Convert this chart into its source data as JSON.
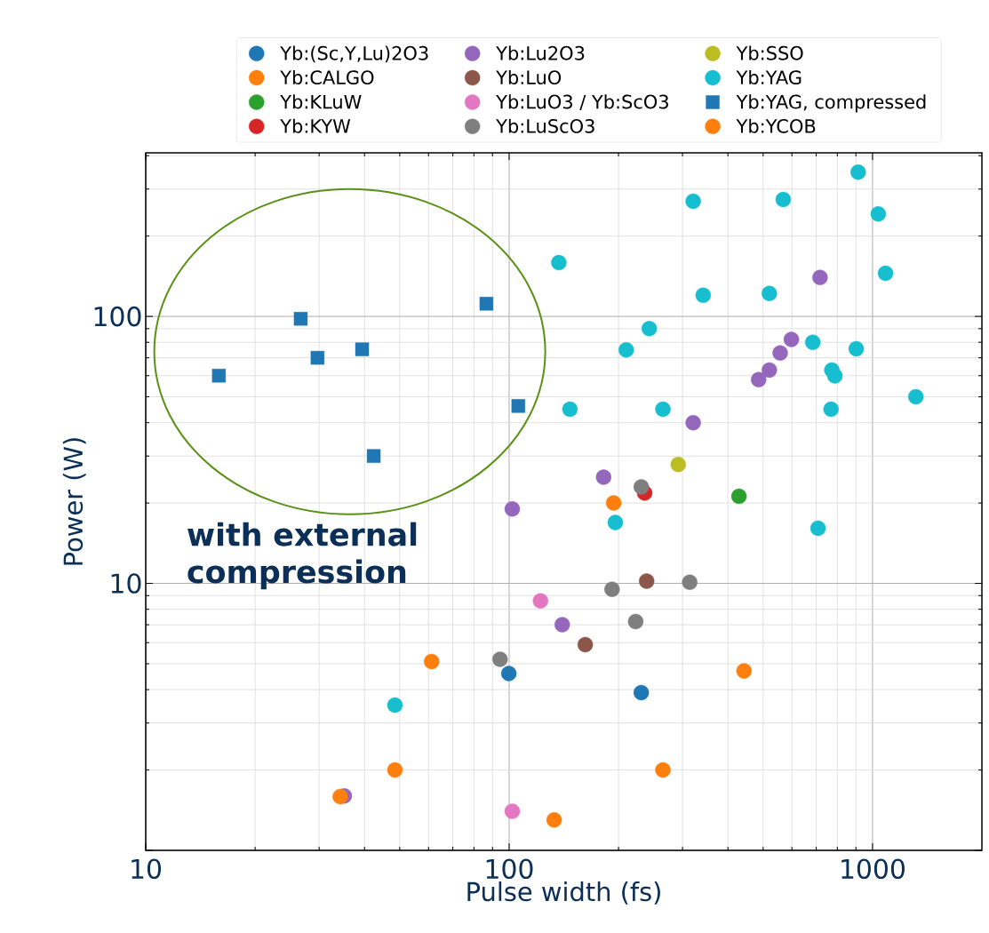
{
  "chart_data": {
    "type": "scatter",
    "xlabel": "Pulse width (fs)",
    "ylabel": "Power (W)",
    "log": "xy",
    "grid": true,
    "legend": "top",
    "marker": "circle",
    "xlim": [
      10,
      2000
    ],
    "ylim": [
      1,
      410
    ],
    "xticks": [
      10,
      100,
      1000
    ],
    "yticks": [
      {
        "value": 1,
        "label": null
      },
      10,
      100
    ],
    "annotations": [
      "with external compression"
    ],
    "series": [
      {
        "name": "Yb:(Sc,Y,Lu)2O3",
        "color": "#1f77b4",
        "x": [
          99.8,
          231
        ],
        "values": [
          4.6,
          3.9
        ]
      },
      {
        "name": "Yb:CALGO",
        "color": "#ff7f0e",
        "x": [
          194,
          443,
          265,
          61.2
        ],
        "values": [
          20.0,
          4.7,
          2.0,
          5.1
        ]
      },
      {
        "name": "Yb:KLuW",
        "color": "#2ca02c",
        "x": [
          429
        ],
        "values": [
          21.2
        ]
      },
      {
        "name": "Yb:KYW",
        "color": "#d62728",
        "x": [
          236
        ],
        "values": [
          21.8
        ]
      },
      {
        "name": "Yb:Lu2O3",
        "color": "#9467bd",
        "x": [
          717,
          598,
          557,
          520,
          486,
          321,
          182,
          102,
          140,
          35.2
        ],
        "values": [
          140,
          82,
          73,
          63,
          58,
          40,
          25.0,
          19.0,
          7.0,
          1.6
        ]
      },
      {
        "name": "Yb:LuO",
        "color": "#8c564b",
        "x": [
          239,
          162
        ],
        "values": [
          10.2,
          5.9
        ]
      },
      {
        "name": "Yb:LuO3 / Yb:ScO3",
        "color": "#e377c2",
        "x": [
          122,
          102
        ],
        "values": [
          8.6,
          1.4
        ]
      },
      {
        "name": "Yb:LuScO3",
        "color": "#7f7f7f",
        "x": [
          231,
          314,
          192,
          223,
          94.4
        ],
        "values": [
          23,
          10.1,
          9.5,
          7.2,
          5.2
        ]
      },
      {
        "name": "Yb:SSO",
        "color": "#bcbd22",
        "x": [
          292
        ],
        "values": [
          27.9
        ]
      },
      {
        "name": "Yb:YAG",
        "color": "#17becf",
        "x": [
          913,
          321,
          568,
          1037,
          137,
          342,
          520,
          1086,
          243,
          210,
          685,
          902,
          773,
          788,
          1316,
          147,
          265,
          769,
          196,
          708,
          48.5
        ],
        "values": [
          347,
          270,
          274,
          242,
          159,
          120,
          122,
          145,
          90,
          74.9,
          80,
          75.7,
          63,
          59.9,
          50,
          44.9,
          44.9,
          44.9,
          16.9,
          16.1,
          3.5
        ]
      },
      {
        "name": "Yb:YAG, compressed",
        "color": "#1f77b4",
        "marker": "square",
        "x": [
          15.9,
          26.7,
          29.7,
          39.4,
          86.6,
          106,
          42.4
        ],
        "values": [
          60,
          98,
          70,
          75.3,
          111.6,
          46.2,
          30.0
        ]
      },
      {
        "name": "Yb:YCOB",
        "color": "#ff7f0e",
        "x": [
          34.3,
          48.5,
          133
        ],
        "values": [
          1.59,
          2.0,
          1.3
        ]
      }
    ]
  }
}
